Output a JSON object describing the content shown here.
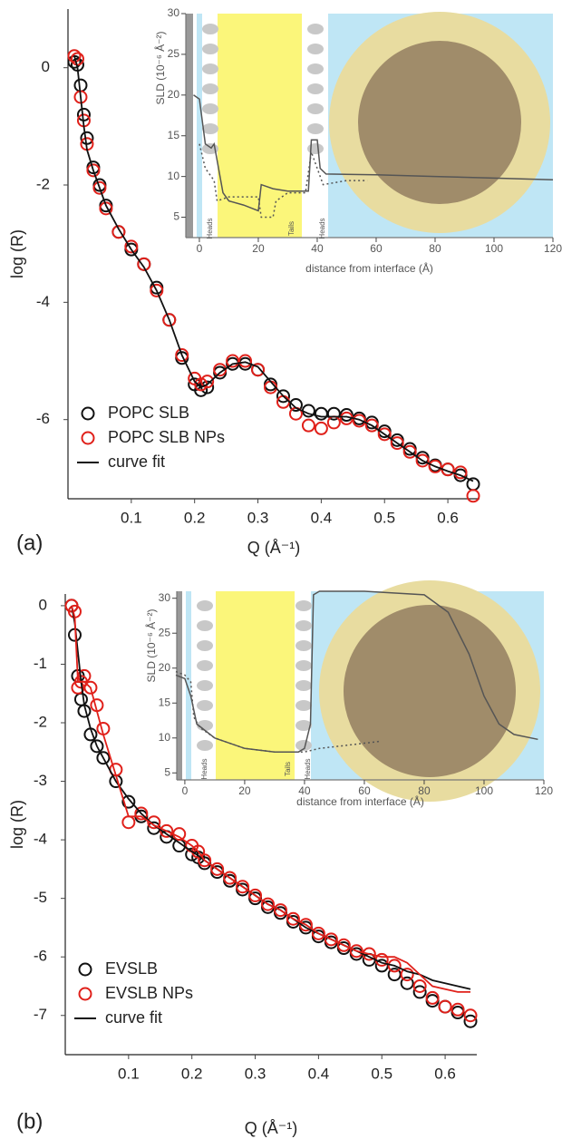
{
  "chart_data": [
    {
      "type": "scatter",
      "panel_label": "(a)",
      "xlabel": "Q (Å⁻¹)",
      "ylabel": "log (R)",
      "legend": "lower left",
      "xlim": [
        0,
        0.65
      ],
      "ylim": [
        -7.35,
        1.0
      ],
      "xticks": [
        0.1,
        0.2,
        0.3,
        0.4,
        0.5,
        0.6
      ],
      "yticks": [
        0,
        -2,
        -4,
        -6
      ],
      "x": [
        0.01,
        0.015,
        0.02,
        0.025,
        0.03,
        0.04,
        0.05,
        0.06,
        0.08,
        0.1,
        0.12,
        0.14,
        0.16,
        0.18,
        0.2,
        0.21,
        0.22,
        0.24,
        0.26,
        0.28,
        0.3,
        0.32,
        0.34,
        0.36,
        0.38,
        0.4,
        0.42,
        0.44,
        0.46,
        0.48,
        0.5,
        0.52,
        0.54,
        0.56,
        0.58,
        0.6,
        0.62,
        0.64
      ],
      "series": [
        {
          "name": "POPC SLB",
          "color": "#111111",
          "style": "circle",
          "values": [
            0.1,
            0.05,
            -0.3,
            -0.8,
            -1.2,
            -1.7,
            -2.0,
            -2.35,
            -2.8,
            -3.1,
            -3.35,
            -3.75,
            -4.3,
            -4.95,
            -5.4,
            -5.5,
            -5.45,
            -5.2,
            -5.05,
            -5.05,
            -5.15,
            -5.4,
            -5.6,
            -5.75,
            -5.85,
            -5.9,
            -5.9,
            -5.92,
            -5.98,
            -6.05,
            -6.2,
            -6.35,
            -6.5,
            -6.65,
            -6.78,
            -6.85,
            -6.95,
            -7.1
          ]
        },
        {
          "name": "POPC SLB NPs",
          "color": "#e0201a",
          "style": "circle",
          "values": [
            0.2,
            0.15,
            -0.5,
            -0.9,
            -1.3,
            -1.75,
            -2.05,
            -2.4,
            -2.8,
            -3.05,
            -3.35,
            -3.8,
            -4.3,
            -4.9,
            -5.3,
            -5.4,
            -5.35,
            -5.15,
            -5.0,
            -5.0,
            -5.15,
            -5.45,
            -5.7,
            -5.9,
            -6.1,
            -6.15,
            -6.05,
            -5.98,
            -6.02,
            -6.1,
            -6.25,
            -6.4,
            -6.55,
            -6.7,
            -6.8,
            -6.85,
            -6.9,
            -7.3
          ]
        },
        {
          "name": "curve fit",
          "color": "#111111",
          "style": "line",
          "values": [
            0.2,
            0.0,
            -0.5,
            -1.0,
            -1.4,
            -1.75,
            -2.05,
            -2.35,
            -2.75,
            -3.1,
            -3.4,
            -3.8,
            -4.3,
            -4.9,
            -5.35,
            -5.45,
            -5.4,
            -5.2,
            -5.05,
            -5.02,
            -5.1,
            -5.35,
            -5.6,
            -5.8,
            -5.9,
            -5.95,
            -5.95,
            -5.95,
            -6.0,
            -6.1,
            -6.25,
            -6.4,
            -6.55,
            -6.7,
            -6.8,
            -6.88,
            -6.95,
            -7.05
          ]
        }
      ]
    },
    {
      "type": "line",
      "xlabel": "distance from interface (Å)",
      "ylabel": "SLD (10⁻⁶ Å⁻²)",
      "annotations": [
        "Heads",
        "Tails",
        "Heads"
      ],
      "xlim": [
        -4.6,
        120
      ],
      "ylim": [
        2.5,
        30
      ],
      "xticks": [
        0,
        20,
        40,
        60,
        80,
        100,
        120
      ],
      "yticks": [
        5,
        10,
        15,
        20,
        25,
        30
      ],
      "series": [
        {
          "color": "#555555",
          "style": "line",
          "x": [
            -2,
            0,
            2,
            4,
            5,
            6,
            8,
            10,
            15,
            20,
            21,
            25,
            30,
            35,
            37,
            38,
            40,
            41,
            43,
            60,
            80,
            100,
            120
          ],
          "values": [
            20,
            19.5,
            14,
            13.5,
            14,
            12,
            8,
            7,
            6.5,
            5.8,
            9,
            8.5,
            8.2,
            8.2,
            8.2,
            14.5,
            14.5,
            11,
            10.3,
            10.2,
            10,
            9.8,
            9.6
          ]
        },
        {
          "color": "#555555",
          "style": "dotted",
          "x": [
            0,
            2,
            4,
            5,
            6,
            10,
            20,
            21,
            25,
            26,
            30,
            36,
            38,
            40,
            42,
            50,
            57
          ],
          "values": [
            14,
            11,
            10,
            9.5,
            7,
            7.5,
            7.5,
            5,
            5,
            7,
            8,
            8,
            13,
            11,
            9,
            9.5,
            9.5
          ]
        }
      ]
    },
    {
      "type": "scatter",
      "panel_label": "(b)",
      "xlabel": "Q (Å⁻¹)",
      "ylabel": "log (R)",
      "legend": "lower left",
      "xlim": [
        0,
        0.65
      ],
      "ylim": [
        -7.67,
        0.2
      ],
      "xticks": [
        0.1,
        0.2,
        0.3,
        0.4,
        0.5,
        0.6
      ],
      "yticks": [
        0,
        -1,
        -2,
        -3,
        -4,
        -5,
        -6,
        -7
      ],
      "x": [
        0.01,
        0.015,
        0.02,
        0.025,
        0.03,
        0.04,
        0.05,
        0.06,
        0.08,
        0.1,
        0.12,
        0.14,
        0.16,
        0.18,
        0.2,
        0.21,
        0.22,
        0.24,
        0.26,
        0.28,
        0.3,
        0.32,
        0.34,
        0.36,
        0.38,
        0.4,
        0.42,
        0.44,
        0.46,
        0.48,
        0.5,
        0.52,
        0.54,
        0.56,
        0.58,
        0.6,
        0.62,
        0.64
      ],
      "series": [
        {
          "name": "EVSLB",
          "color": "#111111",
          "style": "circle",
          "values": [
            0,
            -0.5,
            -1.2,
            -1.6,
            -1.8,
            -2.2,
            -2.4,
            -2.6,
            -3.0,
            -3.35,
            -3.6,
            -3.8,
            -3.95,
            -4.1,
            -4.25,
            -4.3,
            -4.4,
            -4.55,
            -4.7,
            -4.85,
            -5.0,
            -5.15,
            -5.25,
            -5.4,
            -5.5,
            -5.65,
            -5.75,
            -5.85,
            -5.95,
            -6.05,
            -6.15,
            -6.3,
            -6.45,
            -6.6,
            -6.75,
            -6.85,
            -6.95,
            -7.1
          ]
        },
        {
          "name": "EVSLB NPs",
          "color": "#e0201a",
          "style": "circle",
          "values": [
            0,
            -0.1,
            -1.4,
            -1.3,
            -1.2,
            -1.4,
            -1.7,
            -2.1,
            -2.8,
            -3.7,
            -3.55,
            -3.7,
            -3.85,
            -3.9,
            -4.1,
            -4.2,
            -4.35,
            -4.5,
            -4.65,
            -4.8,
            -4.95,
            -5.1,
            -5.2,
            -5.35,
            -5.45,
            -5.6,
            -5.7,
            -5.8,
            -5.9,
            -5.95,
            -6.05,
            -6.15,
            -6.3,
            -6.5,
            -6.7,
            -6.85,
            -6.9,
            -7.0
          ]
        },
        {
          "name": "curve fit",
          "color": "#111111",
          "style": "line",
          "values": [
            0,
            -0.3,
            -0.8,
            -1.3,
            -1.7,
            -2.1,
            -2.4,
            -2.6,
            -3.0,
            -3.3,
            -3.55,
            -3.75,
            -3.9,
            -4.05,
            -4.2,
            -4.27,
            -4.35,
            -4.5,
            -4.65,
            -4.8,
            -4.95,
            -5.1,
            -5.2,
            -5.35,
            -5.5,
            -5.6,
            -5.7,
            -5.8,
            -5.9,
            -6.0,
            -6.1,
            -6.15,
            -6.25,
            -6.3,
            -6.4,
            -6.45,
            -6.5,
            -6.55
          ]
        },
        {
          "name": null,
          "color": "#e0201a",
          "style": "line",
          "values": [
            0,
            -0.2,
            -1.3,
            -1.3,
            -1.3,
            -1.4,
            -1.8,
            -2.2,
            -2.9,
            -3.6,
            -3.6,
            -3.75,
            -3.85,
            -3.95,
            -4.1,
            -4.2,
            -4.35,
            -4.5,
            -4.65,
            -4.8,
            -4.95,
            -5.1,
            -5.2,
            -5.35,
            -5.45,
            -5.6,
            -5.7,
            -5.8,
            -5.9,
            -5.95,
            -6.0,
            -6.0,
            -6.1,
            -6.3,
            -6.5,
            -6.55,
            -6.6,
            -6.6
          ]
        }
      ]
    },
    {
      "type": "line",
      "xlabel": "distance from interface (Å)",
      "ylabel": "SLD (10⁻⁶ Å⁻²)",
      "annotations": [
        "Heads",
        "Tails",
        "Heads"
      ],
      "xlim": [
        -2.7,
        120
      ],
      "ylim": [
        4,
        31
      ],
      "xticks": [
        0,
        20,
        40,
        60,
        80,
        100,
        120
      ],
      "yticks": [
        5,
        10,
        15,
        20,
        25,
        30
      ],
      "series": [
        {
          "color": "#555555",
          "style": "line",
          "x": [
            -3,
            0,
            2,
            4,
            10,
            20,
            30,
            38,
            40,
            42,
            43,
            45,
            60,
            80,
            88,
            95,
            100,
            105,
            110,
            118
          ],
          "values": [
            19,
            18.5,
            16,
            12,
            10,
            8.5,
            8,
            8,
            8.5,
            12,
            30.5,
            31,
            31,
            30.5,
            28,
            22,
            16,
            12,
            10.5,
            9.8
          ]
        },
        {
          "color": "#555555",
          "style": "dotted",
          "x": [
            -3,
            0,
            2,
            3,
            5,
            10,
            20,
            30,
            40,
            45,
            55,
            65
          ],
          "values": [
            19.5,
            19,
            18,
            13,
            11.5,
            10,
            8.5,
            8,
            8,
            8.5,
            9,
            9.5
          ]
        }
      ]
    }
  ]
}
